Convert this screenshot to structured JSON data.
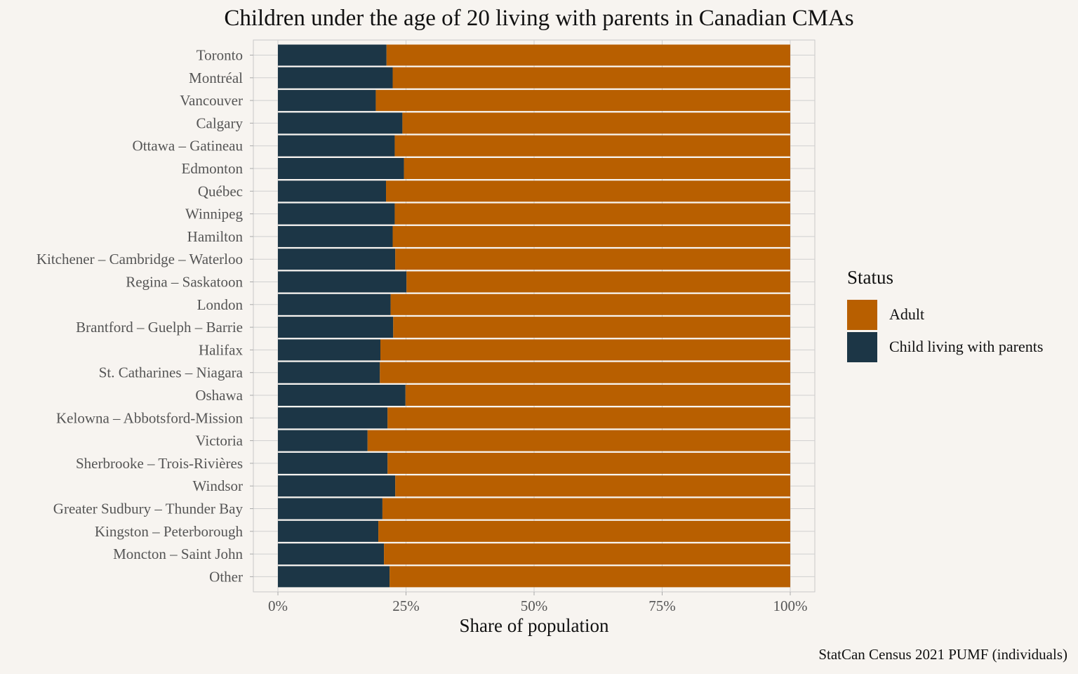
{
  "chart_data": {
    "type": "bar",
    "orientation": "horizontal",
    "stacked": true,
    "title": "Children under the age of 20 living with parents in Canadian CMAs",
    "xlabel": "Share of population",
    "ylabel": "",
    "xlim": [
      0,
      1
    ],
    "x_ticks": [
      "0%",
      "25%",
      "50%",
      "75%",
      "100%"
    ],
    "grid": true,
    "legend_title": "Status",
    "legend_position": "right",
    "caption": "StatCan Census 2021 PUMF (individuals)",
    "categories": [
      "Toronto",
      "Montréal",
      "Vancouver",
      "Calgary",
      "Ottawa – Gatineau",
      "Edmonton",
      "Québec",
      "Winnipeg",
      "Hamilton",
      "Kitchener – Cambridge – Waterloo",
      "Regina – Saskatoon",
      "London",
      "Brantford – Guelph – Barrie",
      "Halifax",
      "St. Catharines – Niagara",
      "Oshawa",
      "Kelowna – Abbotsford-Mission",
      "Victoria",
      "Sherbrooke – Trois-Rivières",
      "Windsor",
      "Greater Sudbury – Thunder Bay",
      "Kingston – Peterborough",
      "Moncton – Saint John",
      "Other"
    ],
    "series": [
      {
        "name": "Child living with parents",
        "color": "#1c3646",
        "values": [
          0.212,
          0.224,
          0.191,
          0.243,
          0.228,
          0.246,
          0.211,
          0.228,
          0.224,
          0.229,
          0.251,
          0.22,
          0.225,
          0.2,
          0.199,
          0.249,
          0.214,
          0.175,
          0.214,
          0.229,
          0.204,
          0.196,
          0.207,
          0.218
        ]
      },
      {
        "name": "Adult",
        "color": "#b85f00",
        "values": [
          0.788,
          0.776,
          0.809,
          0.757,
          0.772,
          0.754,
          0.789,
          0.772,
          0.776,
          0.771,
          0.749,
          0.78,
          0.775,
          0.8,
          0.801,
          0.751,
          0.786,
          0.825,
          0.786,
          0.771,
          0.796,
          0.804,
          0.793,
          0.782
        ]
      }
    ],
    "legend_order": [
      "Adult",
      "Child living with parents"
    ]
  }
}
